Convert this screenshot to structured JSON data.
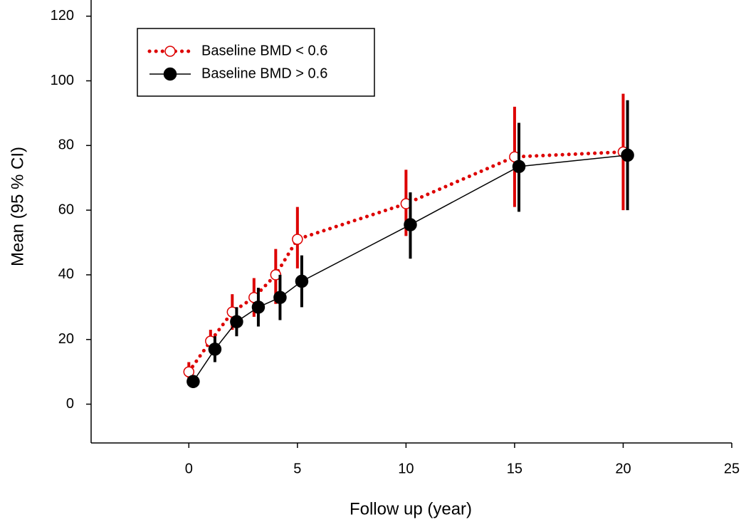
{
  "chart_data": {
    "type": "line",
    "x_label": "Follow up (year)",
    "y_label": "Mean (95 % CI)",
    "xlim": [
      -4.5,
      25
    ],
    "xticks": [
      0,
      5,
      10,
      15,
      20,
      25
    ],
    "ylim": [
      -12,
      125
    ],
    "yticks": [
      0,
      20,
      40,
      60,
      80,
      100,
      120
    ],
    "legend_position": "upper left",
    "series": [
      {
        "name": "Baseline BMD < 0.6",
        "color": "#dd0000",
        "linestyle": "dotted",
        "marker_fill": "open",
        "x": [
          0,
          1,
          2,
          3,
          4,
          5,
          10,
          15,
          20
        ],
        "values": [
          10,
          19.5,
          28.5,
          33,
          40,
          51,
          62,
          76.5,
          78
        ],
        "ci_low": [
          7,
          16,
          23,
          27,
          31,
          42,
          52,
          61,
          60
        ],
        "ci_high": [
          13,
          23,
          34,
          39,
          48,
          61,
          72.5,
          92,
          96
        ]
      },
      {
        "name": "Baseline BMD > 0.6",
        "color": "#000000",
        "linestyle": "solid",
        "marker_fill": "filled",
        "x": [
          0.2,
          1.2,
          2.2,
          3.2,
          4.2,
          5.2,
          10.2,
          15.2,
          20.2
        ],
        "values": [
          7,
          17,
          25.5,
          30,
          33,
          38,
          55.5,
          73.5,
          77
        ],
        "ci_low": [
          5,
          13,
          21,
          24,
          26,
          30,
          45,
          59.5,
          60
        ],
        "ci_high": [
          9,
          21,
          30,
          36,
          40,
          46,
          65.5,
          87,
          94
        ]
      }
    ]
  }
}
